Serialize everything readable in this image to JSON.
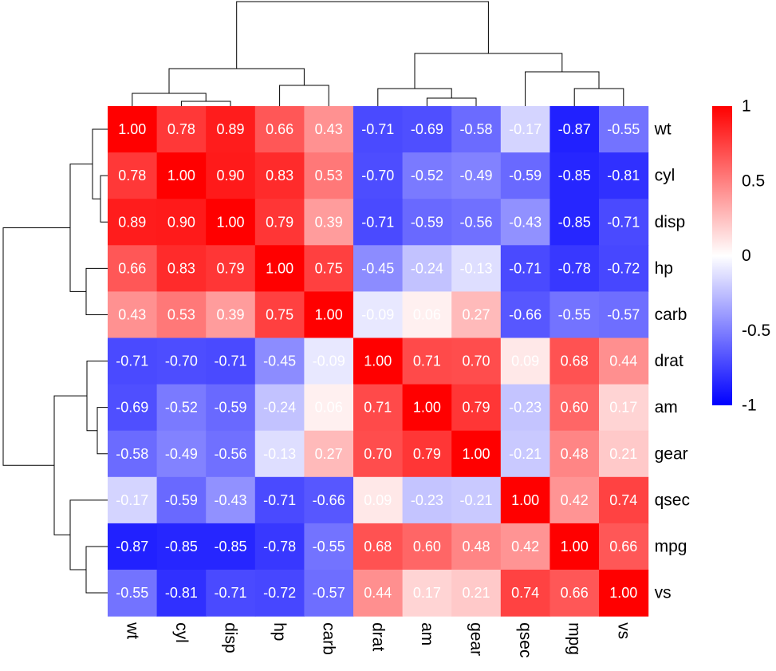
{
  "chart_data": {
    "type": "heatmap",
    "title": "",
    "rows": [
      "wt",
      "cyl",
      "disp",
      "hp",
      "carb",
      "drat",
      "am",
      "gear",
      "qsec",
      "mpg",
      "vs"
    ],
    "columns": [
      "wt",
      "cyl",
      "disp",
      "hp",
      "carb",
      "drat",
      "am",
      "gear",
      "qsec",
      "mpg",
      "vs"
    ],
    "values": [
      [
        1.0,
        0.78,
        0.89,
        0.66,
        0.43,
        -0.71,
        -0.69,
        -0.58,
        -0.17,
        -0.87,
        -0.55
      ],
      [
        0.78,
        1.0,
        0.9,
        0.83,
        0.53,
        -0.7,
        -0.52,
        -0.49,
        -0.59,
        -0.85,
        -0.81
      ],
      [
        0.89,
        0.9,
        1.0,
        0.79,
        0.39,
        -0.71,
        -0.59,
        -0.56,
        -0.43,
        -0.85,
        -0.71
      ],
      [
        0.66,
        0.83,
        0.79,
        1.0,
        0.75,
        -0.45,
        -0.24,
        -0.13,
        -0.71,
        -0.78,
        -0.72
      ],
      [
        0.43,
        0.53,
        0.39,
        0.75,
        1.0,
        -0.09,
        0.06,
        0.27,
        -0.66,
        -0.55,
        -0.57
      ],
      [
        -0.71,
        -0.7,
        -0.71,
        -0.45,
        -0.09,
        1.0,
        0.71,
        0.7,
        0.09,
        0.68,
        0.44
      ],
      [
        -0.69,
        -0.52,
        -0.59,
        -0.24,
        0.06,
        0.71,
        1.0,
        0.79,
        -0.23,
        0.6,
        0.17
      ],
      [
        -0.58,
        -0.49,
        -0.56,
        -0.13,
        0.27,
        0.7,
        0.79,
        1.0,
        -0.21,
        0.48,
        0.21
      ],
      [
        -0.17,
        -0.59,
        -0.43,
        -0.71,
        -0.66,
        0.09,
        -0.23,
        -0.21,
        1.0,
        0.42,
        0.74
      ],
      [
        -0.87,
        -0.85,
        -0.85,
        -0.78,
        -0.55,
        0.68,
        0.6,
        0.48,
        0.42,
        1.0,
        0.66
      ],
      [
        -0.55,
        -0.81,
        -0.71,
        -0.72,
        -0.57,
        0.44,
        0.17,
        0.21,
        0.74,
        0.66,
        1.0
      ]
    ],
    "color_scale": {
      "min": -1,
      "mid": 0,
      "max": 1,
      "low_color": "#0000ff",
      "mid_color": "#ffffff",
      "high_color": "#ff0000"
    },
    "legend": {
      "placement": "right",
      "ticks": [
        1,
        0.5,
        0,
        -0.5,
        -1
      ],
      "tick_labels": [
        "1",
        "0.5",
        "0",
        "-0.5",
        "-1"
      ]
    },
    "dendrograms": {
      "rows": true,
      "columns": true
    }
  }
}
